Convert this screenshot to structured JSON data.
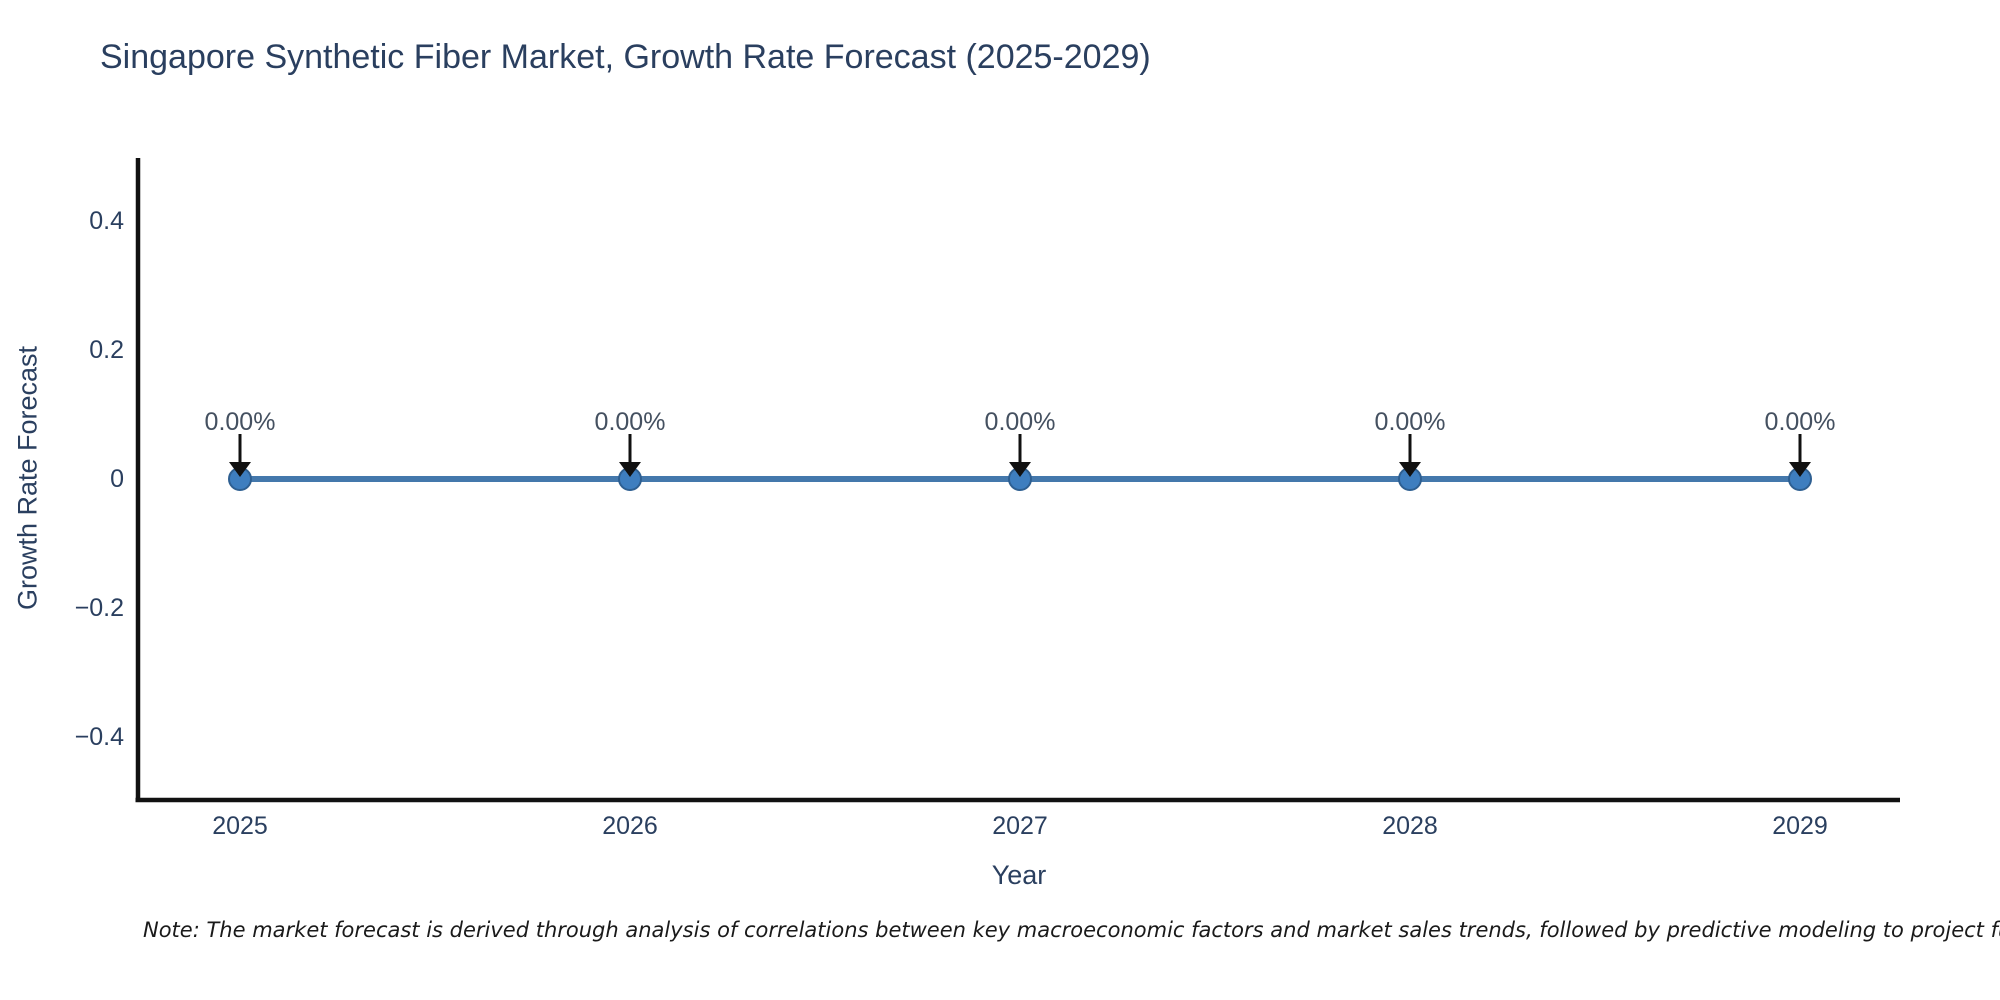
{
  "title": "Singapore Synthetic Fiber Market, Growth Rate Forecast (2025-2029)",
  "note": "Note: The market forecast is derived through analysis of correlations between key macroeconomic factors and market sales trends, followed by predictive modeling to project future sa",
  "chart_data": {
    "type": "line",
    "title": "Singapore Synthetic Fiber Market, Growth Rate Forecast (2025-2029)",
    "xlabel": "Year",
    "ylabel": "Growth Rate Forecast",
    "categories": [
      "2025",
      "2026",
      "2027",
      "2028",
      "2029"
    ],
    "values": [
      0,
      0,
      0,
      0,
      0
    ],
    "point_labels": [
      "0.00%",
      "0.00%",
      "0.00%",
      "0.00%",
      "0.00%"
    ],
    "yticks": [
      0.4,
      0.2,
      0,
      -0.2,
      -0.4
    ],
    "ylim": [
      -0.5,
      0.5
    ],
    "grid": false,
    "legend": "none",
    "colors": {
      "line": "#4478ac",
      "marker_fill": "#3e7ebf",
      "marker_edge": "#2e5f91",
      "axis": "#111111",
      "arrow": "#111111",
      "tick_text": "#2a3f5f",
      "annotation_text": "#445060",
      "title_text": "#2a3f5f"
    }
  }
}
